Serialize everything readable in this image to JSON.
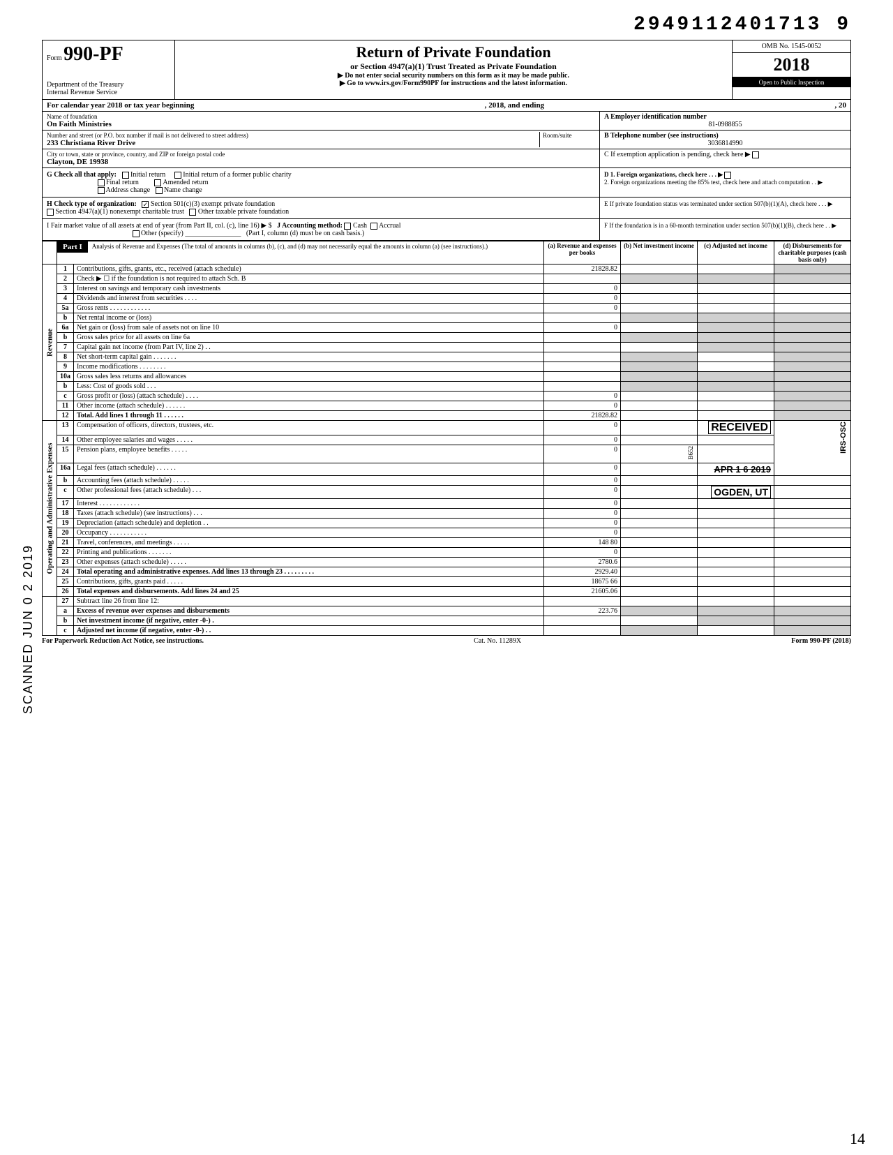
{
  "top_number": "2949112401713 9",
  "form": {
    "prefix": "Form",
    "number": "990-PF",
    "dept": "Department of the Treasury",
    "irs": "Internal Revenue Service"
  },
  "header": {
    "title": "Return of Private Foundation",
    "subtitle": "or Section 4947(a)(1) Trust Treated as Private Foundation",
    "instr1": "▶ Do not enter social security numbers on this form as it may be made public.",
    "instr2": "▶ Go to www.irs.gov/Form990PF for instructions and the latest information.",
    "omb": "OMB No. 1545-0052",
    "year": "2018",
    "open": "Open to Public Inspection"
  },
  "calendar": {
    "left": "For calendar year 2018 or tax year beginning",
    "mid": ", 2018, and ending",
    "right": ", 20"
  },
  "info": {
    "name_lbl": "Name of foundation",
    "name": "On Faith Ministries",
    "addr_lbl": "Number and street (or P.O. box number if mail is not delivered to street address)",
    "room_lbl": "Room/suite",
    "addr": "233 Christiana River Drive",
    "city_lbl": "City or town, state or province, country, and ZIP or foreign postal code",
    "city": "Clayton, DE 19938",
    "ein_lbl": "A  Employer identification number",
    "ein": "81-0988855",
    "tel_lbl": "B  Telephone number (see instructions)",
    "tel": "3036814990",
    "c_lbl": "C  If exemption application is pending, check here ▶"
  },
  "g": {
    "label": "G  Check all that apply:",
    "initial": "Initial return",
    "initial_former": "Initial return of a former public charity",
    "final": "Final return",
    "amended": "Amended return",
    "addr_change": "Address change",
    "name_change": "Name change"
  },
  "d": {
    "d1": "D  1. Foreign organizations, check here . . . ▶",
    "d2": "2. Foreign organizations meeting the 85% test, check here and attach computation . . ▶",
    "e": "E  If private foundation status was terminated under section 507(b)(1)(A), check here . . . ▶",
    "f": "F  If the foundation is in a 60-month termination under section 507(b)(1)(B), check here . . ▶"
  },
  "h": {
    "label": "H  Check type of organization:",
    "c3": "Section 501(c)(3) exempt private foundation",
    "trust": "Section 4947(a)(1) nonexempt charitable trust",
    "other": "Other taxable private foundation"
  },
  "i": {
    "fmv": "I   Fair market value of all assets at end of year  (from Part II, col. (c), line 16) ▶  $",
    "j": "J  Accounting method:",
    "cash": "Cash",
    "accrual": "Accrual",
    "other": "Other (specify)",
    "note": "(Part I, column (d) must be on cash basis.)"
  },
  "part1": {
    "label": "Part I",
    "desc": "Analysis of Revenue and Expenses (The total of amounts in columns (b), (c), and (d) may not necessarily equal the amounts in column (a) (see instructions).)",
    "col_a": "(a) Revenue and expenses per books",
    "col_b": "(b) Net investment income",
    "col_c": "(c) Adjusted net income",
    "col_d": "(d) Disbursements for charitable purposes (cash basis only)"
  },
  "side": {
    "revenue": "Revenue",
    "opex": "Operating and Administrative Expenses",
    "scanned": "SCANNED  JUN 0 2 2019"
  },
  "rows": {
    "r1": {
      "n": "1",
      "d": "Contributions, gifts, grants, etc., received (attach schedule)",
      "a": "21828.82"
    },
    "r2": {
      "n": "2",
      "d": "Check ▶ ☐ if the foundation is not required to attach Sch. B"
    },
    "r3": {
      "n": "3",
      "d": "Interest on savings and temporary cash investments",
      "a": "0"
    },
    "r4": {
      "n": "4",
      "d": "Dividends and interest from securities . . . .",
      "a": "0"
    },
    "r5a": {
      "n": "5a",
      "d": "Gross rents . . . . . . . . . . . .",
      "a": "0"
    },
    "r5b": {
      "n": "b",
      "d": "Net rental income or (loss)"
    },
    "r6a": {
      "n": "6a",
      "d": "Net gain or (loss) from sale of assets not on line 10",
      "a": "0"
    },
    "r6b": {
      "n": "b",
      "d": "Gross sales price for all assets on line 6a"
    },
    "r7": {
      "n": "7",
      "d": "Capital gain net income (from Part IV, line 2) . ."
    },
    "r8": {
      "n": "8",
      "d": "Net short-term capital gain . . . . . . ."
    },
    "r9": {
      "n": "9",
      "d": "Income modifications . . . . . . . ."
    },
    "r10a": {
      "n": "10a",
      "d": "Gross sales less returns and allowances"
    },
    "r10b": {
      "n": "b",
      "d": "Less: Cost of goods sold . . ."
    },
    "r10c": {
      "n": "c",
      "d": "Gross profit or (loss) (attach schedule) . . . .",
      "a": "0"
    },
    "r11": {
      "n": "11",
      "d": "Other income (attach schedule) . . . . . .",
      "a": "0"
    },
    "r12": {
      "n": "12",
      "d": "Total. Add lines 1 through 11 . . . . . .",
      "a": "21828.82"
    },
    "r13": {
      "n": "13",
      "d": "Compensation of officers, directors, trustees, etc.",
      "a": "0"
    },
    "r14": {
      "n": "14",
      "d": "Other employee salaries and wages . . . . .",
      "a": "0"
    },
    "r15": {
      "n": "15",
      "d": "Pension plans, employee benefits . . . . .",
      "a": "0"
    },
    "r16a": {
      "n": "16a",
      "d": "Legal fees (attach schedule) . . . . . .",
      "a": "0"
    },
    "r16b": {
      "n": "b",
      "d": "Accounting fees (attach schedule) . . . . .",
      "a": "0"
    },
    "r16c": {
      "n": "c",
      "d": "Other professional fees (attach schedule) . . .",
      "a": "0"
    },
    "r17": {
      "n": "17",
      "d": "Interest . . . . . . . . . . . .",
      "a": "0"
    },
    "r18": {
      "n": "18",
      "d": "Taxes (attach schedule) (see instructions) . . .",
      "a": "0"
    },
    "r19": {
      "n": "19",
      "d": "Depreciation (attach schedule) and depletion . .",
      "a": "0"
    },
    "r20": {
      "n": "20",
      "d": "Occupancy . . . . . . . . . . .",
      "a": "0"
    },
    "r21": {
      "n": "21",
      "d": "Travel, conferences, and meetings . . . . .",
      "a": "148 80"
    },
    "r22": {
      "n": "22",
      "d": "Printing and publications . . . . . . .",
      "a": "0"
    },
    "r23": {
      "n": "23",
      "d": "Other expenses (attach schedule) . . . . .",
      "a": "2780.6"
    },
    "r24": {
      "n": "24",
      "d": "Total operating and administrative expenses. Add lines 13 through 23 . . . . . . . . .",
      "a": "2929.40"
    },
    "r25": {
      "n": "25",
      "d": "Contributions, gifts, grants paid . . . . .",
      "a": "18675 66"
    },
    "r26": {
      "n": "26",
      "d": "Total expenses and disbursements. Add lines 24 and 25",
      "a": "21605.06"
    },
    "r27": {
      "n": "27",
      "d": "Subtract line 26 from line 12:"
    },
    "r27a": {
      "n": "a",
      "d": "Excess of revenue over expenses and disbursements",
      "a": "223.76"
    },
    "r27b": {
      "n": "b",
      "d": "Net investment income (if negative, enter -0-) ."
    },
    "r27c": {
      "n": "c",
      "d": "Adjusted net income (if negative, enter -0-) . ."
    }
  },
  "stamps": {
    "received": "RECEIVED",
    "date": "APR 1 6 2019",
    "ogden": "OGDEN, UT",
    "irs_osc": "IRS-OSC",
    "b652": "B652"
  },
  "footer": {
    "left": "For Paperwork Reduction Act Notice, see instructions.",
    "mid": "Cat. No. 11289X",
    "right": "Form 990-PF (2018)"
  },
  "hand": "14",
  "colors": {
    "black": "#000000",
    "white": "#ffffff",
    "shade": "#d0d0d0"
  }
}
